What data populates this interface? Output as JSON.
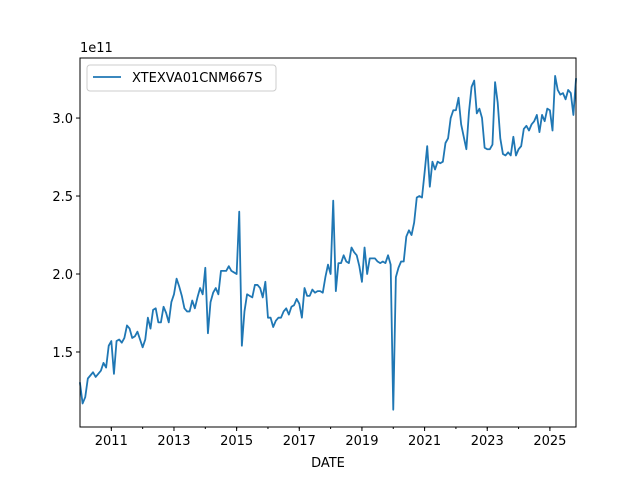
{
  "chart_data": {
    "type": "line",
    "title": "",
    "xlabel": "DATE",
    "ylabel": "",
    "y_offset_label": "1e11",
    "x_start": "2010-01",
    "frequency": "monthly",
    "xlim": [
      "2010-01",
      "2025-11"
    ],
    "ylim": [
      1.019,
      3.385
    ],
    "y_unit_scale": 100000000000.0,
    "grid": false,
    "legend_placement": "top-left",
    "x_ticks": [
      "2011",
      "2013",
      "2015",
      "2017",
      "2019",
      "2021",
      "2023",
      "2025"
    ],
    "y_ticks": [
      "1.5",
      "2.0",
      "2.5",
      "3.0"
    ],
    "series": [
      {
        "name": "XTEXVA01CNM667S",
        "color": "#1f77b4",
        "values": [
          1.3,
          1.17,
          1.21,
          1.33,
          1.35,
          1.37,
          1.34,
          1.36,
          1.38,
          1.43,
          1.4,
          1.54,
          1.57,
          1.36,
          1.57,
          1.58,
          1.56,
          1.59,
          1.67,
          1.65,
          1.59,
          1.6,
          1.63,
          1.58,
          1.53,
          1.58,
          1.72,
          1.65,
          1.77,
          1.78,
          1.69,
          1.69,
          1.79,
          1.75,
          1.69,
          1.82,
          1.87,
          1.97,
          1.92,
          1.86,
          1.78,
          1.76,
          1.76,
          1.83,
          1.78,
          1.85,
          1.91,
          1.87,
          2.04,
          1.62,
          1.82,
          1.88,
          1.91,
          1.87,
          2.02,
          2.02,
          2.02,
          2.05,
          2.02,
          2.01,
          2.0,
          2.4,
          1.54,
          1.76,
          1.87,
          1.86,
          1.85,
          1.93,
          1.93,
          1.91,
          1.85,
          1.95,
          1.72,
          1.72,
          1.66,
          1.7,
          1.72,
          1.72,
          1.76,
          1.78,
          1.74,
          1.79,
          1.8,
          1.84,
          1.81,
          1.72,
          1.91,
          1.86,
          1.86,
          1.9,
          1.88,
          1.89,
          1.89,
          1.88,
          1.98,
          2.06,
          2.0,
          2.47,
          1.89,
          2.07,
          2.07,
          2.12,
          2.08,
          2.07,
          2.17,
          2.14,
          2.12,
          2.05,
          1.95,
          2.17,
          2.0,
          2.1,
          2.1,
          2.1,
          2.08,
          2.07,
          2.08,
          2.07,
          2.12,
          2.06,
          1.13,
          1.98,
          2.04,
          2.08,
          2.08,
          2.24,
          2.28,
          2.25,
          2.33,
          2.49,
          2.5,
          2.49,
          2.65,
          2.82,
          2.56,
          2.72,
          2.67,
          2.72,
          2.71,
          2.72,
          2.84,
          2.87,
          3.0,
          3.05,
          3.05,
          3.13,
          2.96,
          2.88,
          2.8,
          3.04,
          3.2,
          3.24,
          3.03,
          3.06,
          3.0,
          2.81,
          2.8,
          2.8,
          2.83,
          3.23,
          3.1,
          2.87,
          2.77,
          2.76,
          2.78,
          2.76,
          2.88,
          2.76,
          2.8,
          2.82,
          2.93,
          2.95,
          2.92,
          2.96,
          2.98,
          3.02,
          2.91,
          3.02,
          2.98,
          3.06,
          3.05,
          2.92,
          3.27,
          3.18,
          3.15,
          3.16,
          3.12,
          3.18,
          3.16,
          3.02,
          3.25
        ]
      }
    ]
  }
}
